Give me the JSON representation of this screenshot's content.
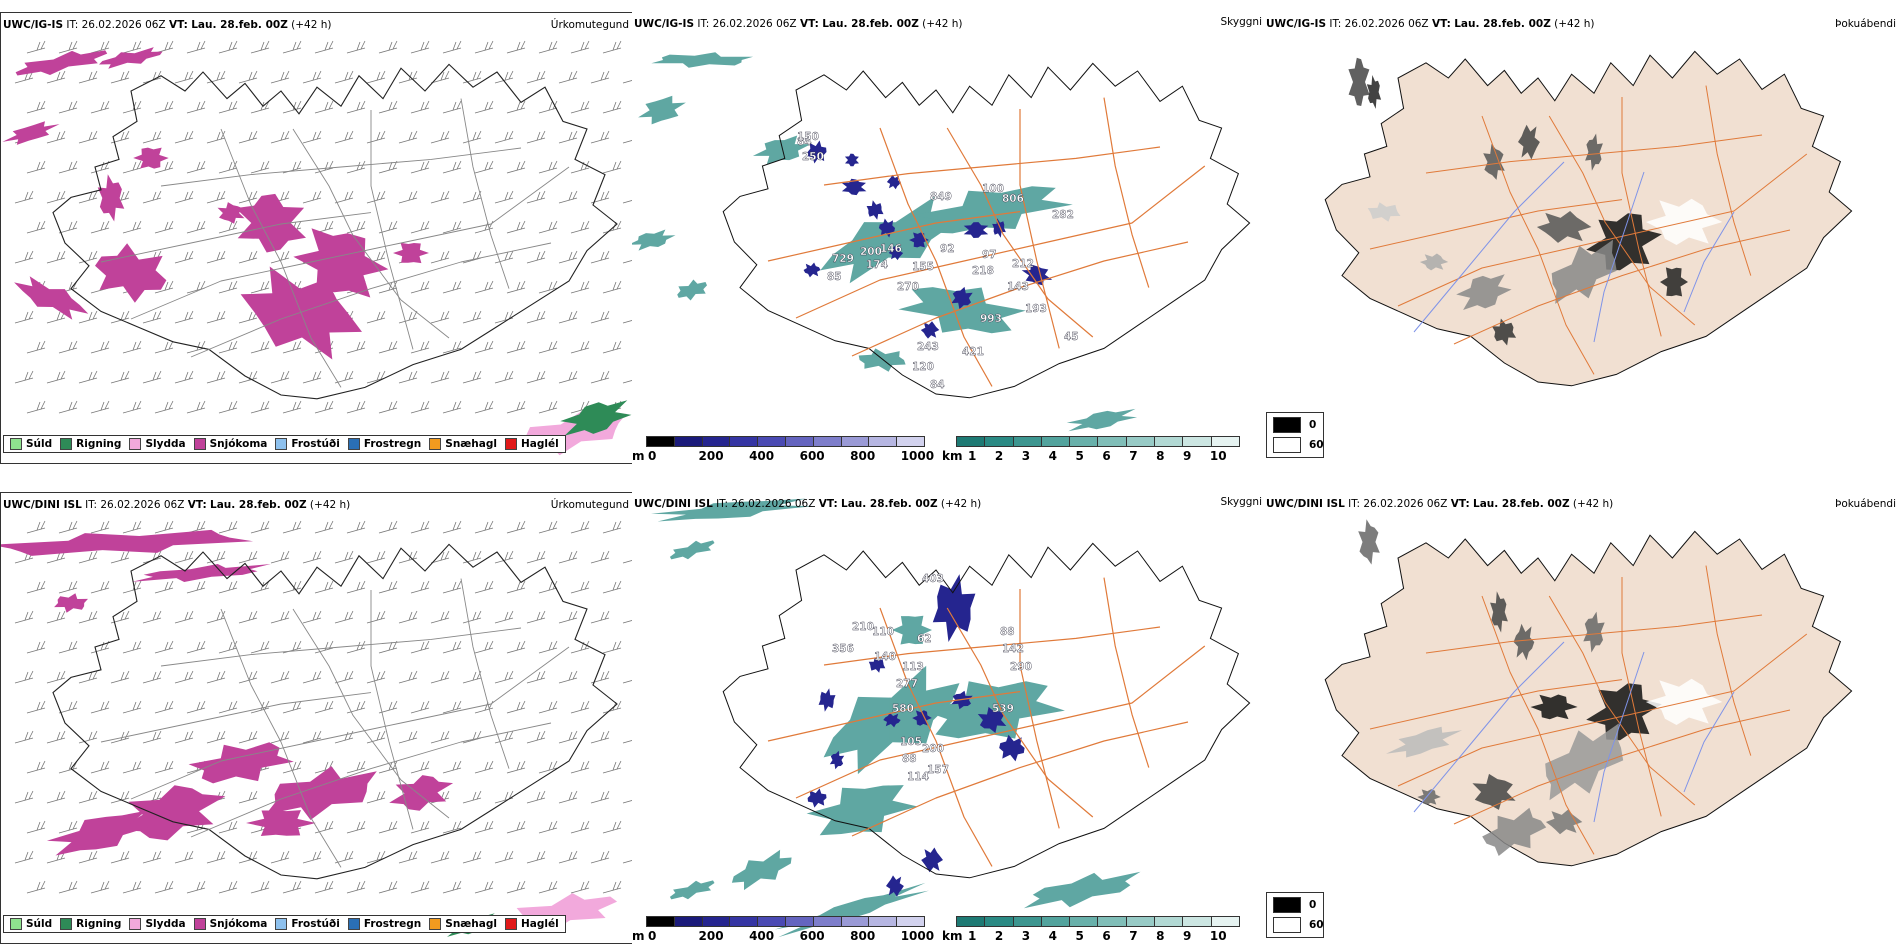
{
  "rows": [
    {
      "model": "UWC/IG-IS",
      "it_label": "IT:",
      "it_value": "26.02.2026 06Z",
      "vt_label": "VT:",
      "vt_value": "Lau. 28.feb. 00Z",
      "lead": "(+42 h)",
      "labels_mid": [
        "849",
        "100",
        "806",
        "282",
        "729",
        "200",
        "146",
        "92",
        "97",
        "212",
        "218",
        "174",
        "155",
        "143",
        "85",
        "270",
        "193",
        "993",
        "243",
        "421",
        "120",
        "84",
        "45",
        "250",
        "84",
        "150"
      ]
    },
    {
      "model": "UWC/DINI ISL",
      "it_label": "IT:",
      "it_value": "26.02.2026 06Z",
      "vt_label": "VT:",
      "vt_value": "Lau. 28.feb. 00Z",
      "lead": "(+42 h)",
      "labels_mid": [
        "403",
        "210",
        "110",
        "62",
        "88",
        "142",
        "290",
        "356",
        "140",
        "113",
        "277",
        "539",
        "580",
        "105",
        "200",
        "88",
        "157",
        "114"
      ]
    }
  ],
  "panel_titles": {
    "precip_type": "Úrkomutegund",
    "visibility": "Skyggni",
    "cloud": "Þokuábendi"
  },
  "precip_legend": [
    {
      "label": "Súld",
      "color": "#8fe38f"
    },
    {
      "label": "Rigning",
      "color": "#2e8b57"
    },
    {
      "label": "Slydda",
      "color": "#f2a9dc"
    },
    {
      "label": "Snjókoma",
      "color": "#c0429a"
    },
    {
      "label": "Frostúði",
      "color": "#8ec1ee"
    },
    {
      "label": "Frostregn",
      "color": "#2a6fb5"
    },
    {
      "label": "Snæhagl",
      "color": "#f29b1f"
    },
    {
      "label": "Haglél",
      "color": "#e01919"
    }
  ],
  "height_colorbar": {
    "unit": "m",
    "ticks": [
      "0",
      "200",
      "400",
      "600",
      "800",
      "1000"
    ],
    "colors": [
      "#000000",
      "#1a1a7a",
      "#25258f",
      "#3535a3",
      "#4a4ab3",
      "#6464bf",
      "#7e7ecb",
      "#9a9ad6",
      "#b6b6e2",
      "#d2d2ee"
    ]
  },
  "visibility_colorbar": {
    "unit": "km",
    "ticks": [
      "1",
      "2",
      "3",
      "4",
      "5",
      "6",
      "7",
      "8",
      "9",
      "10"
    ],
    "colors": [
      "#1e7a74",
      "#2a8a84",
      "#3d9690",
      "#52a39d",
      "#68b0aa",
      "#80beb8",
      "#98cbc6",
      "#b2d9d4",
      "#cce6e2",
      "#e6f3f1"
    ]
  },
  "fog_legend": [
    {
      "label": "0",
      "color": "#000000"
    },
    {
      "label": "60",
      "color": "#ffffff"
    }
  ],
  "colors": {
    "land_cloud": "#f1e0d2",
    "roads": "#e07a3a",
    "rivers": "#7f93e8",
    "snow": "#c0429a",
    "vis": "#2a8a84",
    "height": "#25258f"
  }
}
